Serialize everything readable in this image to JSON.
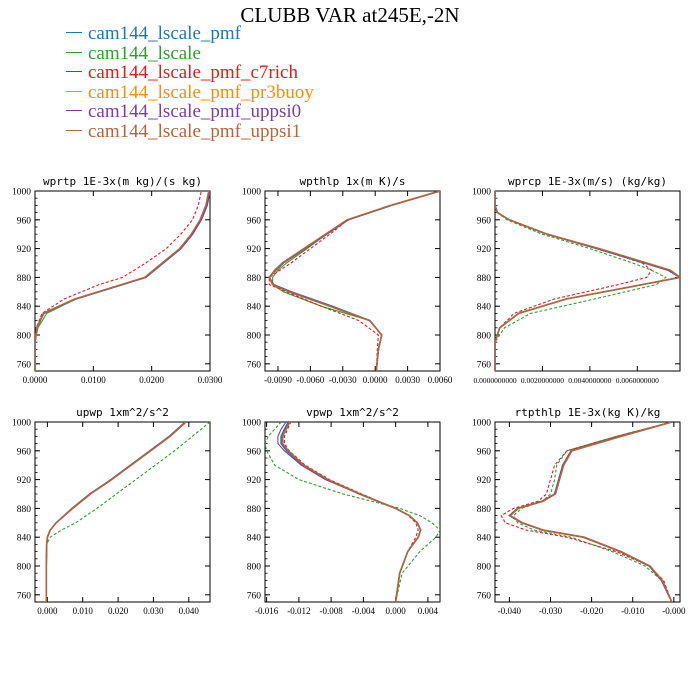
{
  "title": "CLUBB VAR at245E,-2N",
  "legend": [
    {
      "label": "cam144_lscale_pmf",
      "color": "#1f77b4"
    },
    {
      "label": "cam144_lscale",
      "color": "#2ca02c"
    },
    {
      "label": "cam144_lscale_pmf_c7rich",
      "color": "#e41a1c"
    },
    {
      "label": "cam144_lscale_pmf_pr3buoy",
      "color": "#ff8c00"
    },
    {
      "label": "cam144_lscale_pmf_uppsi0",
      "color": "#7b3fa0"
    },
    {
      "label": "cam144_lscale_pmf_uppsi1",
      "color": "#b5653a"
    }
  ],
  "chart_data": [
    {
      "type": "line",
      "title": "wprtp  1E-3x(m kg)/(s kg)",
      "xlim": [
        0,
        0.03
      ],
      "ylim": [
        1000,
        750
      ],
      "xticks": [
        0,
        0.01,
        0.02,
        0.03
      ],
      "xtick_labels": [
        "0.0000",
        "0.0100",
        "0.0200",
        "0.0300"
      ],
      "yticks": [
        760,
        800,
        840,
        880,
        920,
        960,
        1000
      ],
      "y": [
        750,
        790,
        810,
        830,
        850,
        870,
        880,
        900,
        920,
        940,
        960,
        980,
        1000
      ],
      "series": [
        {
          "x": [
            0,
            0,
            0.0003,
            0.0015,
            0.007,
            0.015,
            0.019,
            0.022,
            0.025,
            0.027,
            0.0285,
            0.0295,
            0.03
          ]
        },
        {
          "x": [
            0,
            0,
            0.0005,
            0.002,
            0.007,
            0.015,
            0.019,
            0.022,
            0.025,
            0.027,
            0.0285,
            0.0295,
            0.03
          ]
        },
        {
          "x": [
            0,
            0,
            0.0002,
            0.0012,
            0.005,
            0.011,
            0.015,
            0.019,
            0.0225,
            0.025,
            0.027,
            0.028,
            0.0285
          ],
          "dash": true
        },
        {
          "x": [
            0,
            0,
            0.0003,
            0.0015,
            0.007,
            0.015,
            0.019,
            0.022,
            0.025,
            0.027,
            0.0285,
            0.0295,
            0.03
          ]
        },
        {
          "x": [
            0,
            0,
            0.0003,
            0.0015,
            0.007,
            0.015,
            0.019,
            0.022,
            0.025,
            0.027,
            0.0285,
            0.0295,
            0.03
          ]
        },
        {
          "x": [
            0,
            0,
            0.0003,
            0.0014,
            0.0068,
            0.0148,
            0.0188,
            0.0218,
            0.0248,
            0.0268,
            0.0283,
            0.0293,
            0.0298
          ]
        }
      ]
    },
    {
      "type": "line",
      "title": "wpthlp  1x(m K)/s",
      "xlim": [
        -0.0102,
        0.006
      ],
      "ylim": [
        1000,
        750
      ],
      "xticks": [
        -0.009,
        -0.006,
        -0.003,
        0,
        0.003,
        0.006
      ],
      "xtick_labels": [
        "-0.0090",
        "-0.0060",
        "-0.0030",
        "0.0000",
        "0.0030",
        "0.0060"
      ],
      "yticks": [
        760,
        800,
        840,
        880,
        920,
        960,
        1000
      ],
      "y": [
        750,
        780,
        800,
        820,
        840,
        860,
        870,
        880,
        890,
        900,
        920,
        940,
        960,
        980,
        1000
      ],
      "series": [
        {
          "x": [
            0.0001,
            0.0003,
            0.0006,
            -0.0005,
            -0.004,
            -0.0078,
            -0.0094,
            -0.0098,
            -0.0092,
            -0.0085,
            -0.0065,
            -0.0045,
            -0.0025,
            0.0015,
            0.006
          ]
        },
        {
          "x": [
            0.0001,
            0.0003,
            0.0006,
            -0.0005,
            -0.005,
            -0.0085,
            -0.0095,
            -0.0095,
            -0.009,
            -0.0082,
            -0.0063,
            -0.0045,
            -0.0025,
            0.0015,
            0.006
          ]
        },
        {
          "x": [
            0.0001,
            0.0002,
            0.0003,
            -0.0015,
            -0.005,
            -0.0082,
            -0.0098,
            -0.0098,
            -0.0088,
            -0.0078,
            -0.006,
            -0.0042,
            -0.0025,
            0.0015,
            0.006
          ],
          "dash": true
        },
        {
          "x": [
            0.0001,
            0.0003,
            0.0006,
            -0.0005,
            -0.004,
            -0.0078,
            -0.0094,
            -0.0098,
            -0.0092,
            -0.0085,
            -0.0065,
            -0.0045,
            -0.0025,
            0.0015,
            0.006
          ]
        },
        {
          "x": [
            0.0001,
            0.0003,
            0.0006,
            -0.0005,
            -0.004,
            -0.0078,
            -0.0094,
            -0.0098,
            -0.0092,
            -0.0085,
            -0.0065,
            -0.0045,
            -0.0025,
            0.0015,
            0.006
          ]
        },
        {
          "x": [
            0.0001,
            0.0003,
            0.0006,
            -0.0005,
            -0.0042,
            -0.008,
            -0.0095,
            -0.0098,
            -0.0093,
            -0.0086,
            -0.0066,
            -0.0046,
            -0.0026,
            0.0014,
            0.006
          ]
        }
      ]
    },
    {
      "type": "line",
      "title": "wprcp  1E-3x(m/s) (kg/kg)",
      "xlim": [
        0,
        0.0078
      ],
      "ylim": [
        1000,
        750
      ],
      "xticks": [
        0,
        0.002,
        0.004,
        0.006
      ],
      "xtick_labels": [
        "0.0000000000",
        "0.0020000000",
        "0.0040000000",
        "0.0060000000"
      ],
      "yticks": [
        760,
        800,
        840,
        880,
        920,
        960,
        1000
      ],
      "y": [
        750,
        790,
        810,
        830,
        850,
        870,
        880,
        890,
        900,
        920,
        940,
        960,
        970,
        980,
        1000
      ],
      "series": [
        {
          "x": [
            0,
            0,
            0.0002,
            0.001,
            0.003,
            0.0062,
            0.0078,
            0.0073,
            0.0063,
            0.0043,
            0.0022,
            0.0006,
            0.0001,
            0,
            0
          ]
        },
        {
          "x": [
            0,
            0,
            0.0004,
            0.0015,
            0.0042,
            0.0068,
            0.0072,
            0.0066,
            0.0058,
            0.004,
            0.002,
            0.0005,
            0.0001,
            0,
            0
          ],
          "dash": true
        },
        {
          "x": [
            0,
            0,
            0.0002,
            0.0008,
            0.0025,
            0.0052,
            0.0064,
            0.0066,
            0.0062,
            0.0043,
            0.0022,
            0.0006,
            0.0001,
            0,
            0
          ],
          "dash": true
        },
        {
          "x": [
            0,
            0,
            0.0002,
            0.001,
            0.003,
            0.0062,
            0.0078,
            0.0073,
            0.0063,
            0.0043,
            0.0022,
            0.0006,
            0.0001,
            0,
            0
          ]
        },
        {
          "x": [
            0,
            0,
            0.0002,
            0.001,
            0.003,
            0.0062,
            0.0078,
            0.0073,
            0.0063,
            0.0043,
            0.0022,
            0.0006,
            0.0001,
            0,
            0
          ]
        },
        {
          "x": [
            0,
            0,
            0.0002,
            0.001,
            0.003,
            0.0062,
            0.0078,
            0.0074,
            0.0064,
            0.0044,
            0.0022,
            0.0006,
            0.0001,
            0,
            0
          ]
        }
      ]
    },
    {
      "type": "line",
      "title": "upwp  1xm^2/s^2",
      "xlim": [
        -0.0035,
        0.046
      ],
      "ylim": [
        1000,
        750
      ],
      "xticks": [
        0,
        0.01,
        0.02,
        0.03,
        0.04
      ],
      "xtick_labels": [
        "0.000",
        "0.010",
        "0.020",
        "0.030",
        "0.040"
      ],
      "yticks": [
        760,
        800,
        840,
        880,
        920,
        960,
        1000
      ],
      "y": [
        750,
        800,
        830,
        840,
        850,
        860,
        880,
        900,
        920,
        940,
        960,
        980,
        1000
      ],
      "series": [
        {
          "x": [
            -0.0003,
            -0.0003,
            -0.0002,
            0,
            0.0008,
            0.0025,
            0.007,
            0.012,
            0.018,
            0.0235,
            0.029,
            0.0345,
            0.039
          ]
        },
        {
          "x": [
            -0.0003,
            -0.0003,
            -0.0002,
            0.0008,
            0.004,
            0.008,
            0.014,
            0.0195,
            0.025,
            0.0305,
            0.036,
            0.041,
            0.046
          ],
          "dash": true
        },
        {
          "x": [
            -0.0003,
            -0.0003,
            -0.0002,
            0,
            0.0008,
            0.0025,
            0.007,
            0.012,
            0.018,
            0.0235,
            0.029,
            0.0345,
            0.039
          ],
          "dash": true
        },
        {
          "x": [
            -0.0003,
            -0.0003,
            -0.0002,
            0,
            0.0008,
            0.0025,
            0.007,
            0.012,
            0.018,
            0.0235,
            0.029,
            0.0345,
            0.039
          ]
        },
        {
          "x": [
            -0.0003,
            -0.0003,
            -0.0002,
            0,
            0.0008,
            0.0025,
            0.007,
            0.012,
            0.018,
            0.0235,
            0.029,
            0.0345,
            0.039
          ]
        },
        {
          "x": [
            -0.0003,
            -0.0003,
            -0.0002,
            0,
            0.0008,
            0.0025,
            0.0072,
            0.0122,
            0.0182,
            0.0237,
            0.0292,
            0.0347,
            0.0392
          ]
        }
      ]
    },
    {
      "type": "line",
      "title": "vpwp  1xm^2/s^2",
      "xlim": [
        -0.0162,
        0.0055
      ],
      "ylim": [
        1000,
        750
      ],
      "xticks": [
        -0.016,
        -0.012,
        -0.008,
        -0.004,
        0,
        0.004
      ],
      "xtick_labels": [
        "-0.016",
        "-0.012",
        "-0.008",
        "-0.004",
        "0.000",
        "0.004"
      ],
      "yticks": [
        760,
        800,
        840,
        880,
        920,
        960,
        1000
      ],
      "y": [
        750,
        790,
        820,
        840,
        850,
        860,
        870,
        880,
        900,
        920,
        940,
        960,
        970,
        980,
        990,
        1000
      ],
      "series": [
        {
          "x": [
            0,
            0.0005,
            0.0015,
            0.0028,
            0.0031,
            0.0027,
            0.0017,
            0,
            -0.0045,
            -0.0085,
            -0.0115,
            -0.0135,
            -0.0142,
            -0.0142,
            -0.0138,
            -0.0133
          ]
        },
        {
          "x": [
            0,
            0.0008,
            0.003,
            0.005,
            0.0055,
            0.0045,
            0.003,
            0.0005,
            -0.0065,
            -0.012,
            -0.015,
            -0.016,
            -0.0162,
            -0.0158,
            -0.015,
            -0.0142
          ],
          "dash": true
        },
        {
          "x": [
            0,
            0.0005,
            0.0015,
            0.0025,
            0.0028,
            0.0025,
            0.0016,
            0,
            -0.0042,
            -0.0082,
            -0.0112,
            -0.0132,
            -0.0138,
            -0.0138,
            -0.0134,
            -0.013
          ],
          "dash": true
        },
        {
          "x": [
            0,
            0.0005,
            0.0015,
            0.0028,
            0.0031,
            0.0027,
            0.0017,
            0,
            -0.0045,
            -0.0085,
            -0.0115,
            -0.0135,
            -0.0142,
            -0.0142,
            -0.0138,
            -0.0133
          ]
        },
        {
          "x": [
            0,
            0.0005,
            0.0015,
            0.0028,
            0.0031,
            0.0027,
            0.0017,
            0,
            -0.0045,
            -0.0087,
            -0.0117,
            -0.0138,
            -0.0146,
            -0.0146,
            -0.0142,
            -0.0136
          ]
        },
        {
          "x": [
            0,
            0.0005,
            0.0015,
            0.0028,
            0.0031,
            0.0027,
            0.0017,
            0,
            -0.0044,
            -0.0084,
            -0.0114,
            -0.0133,
            -0.014,
            -0.014,
            -0.0136,
            -0.0131
          ]
        }
      ]
    },
    {
      "type": "line",
      "title": "rtpthlp  1E-3x(kg K)/kg",
      "xlim": [
        -0.0435,
        0.0015
      ],
      "ylim": [
        1000,
        750
      ],
      "xticks": [
        -0.04,
        -0.03,
        -0.02,
        -0.01,
        0
      ],
      "xtick_labels": [
        "-0.040",
        "-0.030",
        "-0.020",
        "-0.010",
        "-0.000"
      ],
      "yticks": [
        760,
        800,
        840,
        880,
        920,
        960,
        1000
      ],
      "y": [
        750,
        780,
        800,
        820,
        840,
        850,
        860,
        870,
        880,
        890,
        900,
        920,
        940,
        960,
        980,
        1000
      ],
      "series": [
        {
          "x": [
            -0.0005,
            -0.003,
            -0.006,
            -0.013,
            -0.022,
            -0.032,
            -0.037,
            -0.04,
            -0.038,
            -0.032,
            -0.029,
            -0.028,
            -0.027,
            -0.025,
            -0.013,
            -0.0005
          ]
        },
        {
          "x": [
            -0.0005,
            -0.003,
            -0.007,
            -0.015,
            -0.025,
            -0.034,
            -0.038,
            -0.039,
            -0.037,
            -0.032,
            -0.03,
            -0.029,
            -0.0285,
            -0.026,
            -0.014,
            -0.0005
          ],
          "dash": true
        },
        {
          "x": [
            -0.0005,
            -0.0025,
            -0.006,
            -0.014,
            -0.026,
            -0.036,
            -0.041,
            -0.042,
            -0.039,
            -0.033,
            -0.031,
            -0.03,
            -0.029,
            -0.026,
            -0.014,
            -0.0005
          ],
          "dash": true
        },
        {
          "x": [
            -0.0005,
            -0.003,
            -0.006,
            -0.013,
            -0.022,
            -0.032,
            -0.037,
            -0.04,
            -0.038,
            -0.032,
            -0.029,
            -0.028,
            -0.027,
            -0.025,
            -0.013,
            -0.0005
          ]
        },
        {
          "x": [
            -0.0005,
            -0.003,
            -0.006,
            -0.013,
            -0.022,
            -0.032,
            -0.037,
            -0.04,
            -0.038,
            -0.032,
            -0.029,
            -0.028,
            -0.027,
            -0.025,
            -0.013,
            -0.0005
          ]
        },
        {
          "x": [
            -0.0005,
            -0.0028,
            -0.0058,
            -0.0128,
            -0.0218,
            -0.0318,
            -0.0368,
            -0.0398,
            -0.0378,
            -0.0318,
            -0.0288,
            -0.0278,
            -0.0268,
            -0.0248,
            -0.0128,
            -0.0005
          ]
        }
      ]
    }
  ]
}
